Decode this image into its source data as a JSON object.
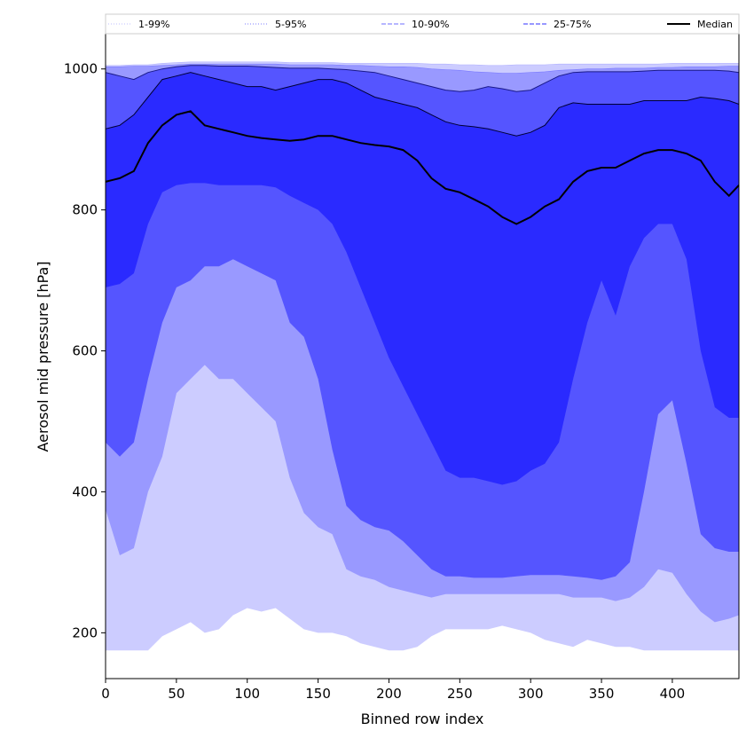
{
  "chart_data": {
    "type": "area",
    "xlabel": "Binned row index",
    "ylabel": "Aerosol mid pressure [hPa]",
    "xlim": [
      0,
      447
    ],
    "ylim": [
      135,
      1050
    ],
    "x_ticks": [
      0,
      50,
      100,
      150,
      200,
      250,
      300,
      350,
      400
    ],
    "y_ticks": [
      200,
      400,
      600,
      800,
      1000
    ],
    "grid": false,
    "legend_position": "top",
    "legend": [
      {
        "label": "1-99%",
        "color": "#ccccff",
        "style": "dotted"
      },
      {
        "label": "5-95%",
        "color": "#9999ff",
        "style": "dotted"
      },
      {
        "label": "10-90%",
        "color": "#8a8aff",
        "style": "dashed"
      },
      {
        "label": "25-75%",
        "color": "#5a5aff",
        "style": "dashed"
      },
      {
        "label": "Median",
        "color": "#000000",
        "style": "solid"
      }
    ],
    "x": [
      0,
      10,
      20,
      30,
      40,
      50,
      60,
      70,
      80,
      90,
      100,
      110,
      120,
      130,
      140,
      150,
      160,
      170,
      180,
      190,
      200,
      210,
      220,
      230,
      240,
      250,
      260,
      270,
      280,
      290,
      300,
      310,
      320,
      330,
      340,
      350,
      360,
      370,
      380,
      390,
      400,
      410,
      420,
      430,
      440,
      447
    ],
    "series": [
      {
        "name": "1-99%",
        "color": "#ccccff",
        "lower": [
          175,
          175,
          175,
          175,
          195,
          205,
          215,
          200,
          205,
          225,
          235,
          230,
          235,
          220,
          205,
          200,
          200,
          195,
          185,
          180,
          175,
          175,
          180,
          195,
          205,
          205,
          205,
          205,
          210,
          205,
          200,
          190,
          185,
          180,
          190,
          185,
          180,
          180,
          175,
          175,
          175,
          175,
          175,
          175,
          175,
          175
        ],
        "upper": [
          1005,
          1005,
          1006,
          1006,
          1008,
          1009,
          1010,
          1010,
          1010,
          1010,
          1010,
          1010,
          1010,
          1009,
          1009,
          1009,
          1009,
          1008,
          1008,
          1008,
          1008,
          1008,
          1008,
          1007,
          1007,
          1006,
          1006,
          1005,
          1005,
          1006,
          1006,
          1006,
          1007,
          1007,
          1007,
          1007,
          1007,
          1007,
          1007,
          1007,
          1008,
          1008,
          1008,
          1008,
          1008,
          1008
        ]
      },
      {
        "name": "5-95%",
        "color": "#9999ff",
        "lower": [
          375,
          310,
          320,
          400,
          450,
          540,
          560,
          580,
          560,
          560,
          540,
          520,
          500,
          420,
          370,
          350,
          340,
          290,
          280,
          275,
          265,
          260,
          255,
          250,
          255,
          255,
          255,
          255,
          255,
          255,
          255,
          255,
          255,
          250,
          250,
          250,
          245,
          250,
          265,
          290,
          285,
          255,
          230,
          215,
          220,
          225
        ],
        "upper": [
          1003,
          1003,
          1004,
          1004,
          1005,
          1006,
          1007,
          1007,
          1007,
          1007,
          1007,
          1007,
          1007,
          1006,
          1006,
          1006,
          1006,
          1005,
          1005,
          1004,
          1003,
          1003,
          1002,
          1000,
          999,
          998,
          996,
          995,
          994,
          994,
          995,
          996,
          998,
          999,
          1000,
          1000,
          1001,
          1001,
          1001,
          1002,
          1002,
          1003,
          1003,
          1003,
          1004,
          1004
        ]
      },
      {
        "name": "10-90%",
        "color": "#8a8aff",
        "lower": [
          470,
          450,
          470,
          560,
          640,
          690,
          700,
          720,
          720,
          730,
          720,
          710,
          700,
          640,
          620,
          560,
          460,
          380,
          360,
          350,
          345,
          330,
          310,
          290,
          280,
          280,
          278,
          278,
          278,
          280,
          282,
          282,
          282,
          280,
          278,
          275,
          280,
          300,
          400,
          510,
          530,
          440,
          340,
          320,
          315,
          315
        ],
        "upper": [
          995,
          990,
          985,
          995,
          1000,
          1003,
          1005,
          1005,
          1004,
          1004,
          1004,
          1003,
          1002,
          1001,
          1001,
          1001,
          1000,
          999,
          997,
          995,
          990,
          985,
          980,
          975,
          970,
          968,
          970,
          975,
          972,
          968,
          970,
          980,
          990,
          995,
          996,
          996,
          996,
          996,
          997,
          998,
          998,
          998,
          998,
          998,
          997,
          995
        ]
      },
      {
        "name": "25-75%",
        "color": "#5a5aff",
        "lower": [
          690,
          695,
          710,
          780,
          825,
          835,
          838,
          838,
          835,
          835,
          835,
          835,
          832,
          820,
          810,
          800,
          780,
          740,
          690,
          640,
          590,
          550,
          510,
          470,
          430,
          420,
          420,
          415,
          410,
          415,
          430,
          440,
          470,
          560,
          640,
          700,
          650,
          720,
          760,
          780,
          780,
          730,
          600,
          520,
          505,
          505
        ],
        "upper": [
          915,
          920,
          935,
          960,
          985,
          990,
          995,
          990,
          985,
          980,
          975,
          975,
          970,
          975,
          980,
          985,
          985,
          980,
          970,
          960,
          955,
          950,
          945,
          935,
          925,
          920,
          918,
          915,
          910,
          905,
          910,
          920,
          945,
          952,
          950,
          950,
          950,
          950,
          955,
          955,
          955,
          955,
          960,
          958,
          955,
          950
        ]
      },
      {
        "name": "Median",
        "color": "#000000",
        "values": [
          840,
          845,
          855,
          895,
          920,
          935,
          940,
          920,
          915,
          910,
          905,
          902,
          900,
          898,
          900,
          905,
          905,
          900,
          895,
          892,
          890,
          885,
          870,
          845,
          830,
          825,
          815,
          805,
          790,
          780,
          790,
          805,
          815,
          840,
          855,
          860,
          860,
          870,
          880,
          885,
          885,
          880,
          870,
          840,
          820,
          835
        ]
      }
    ]
  }
}
